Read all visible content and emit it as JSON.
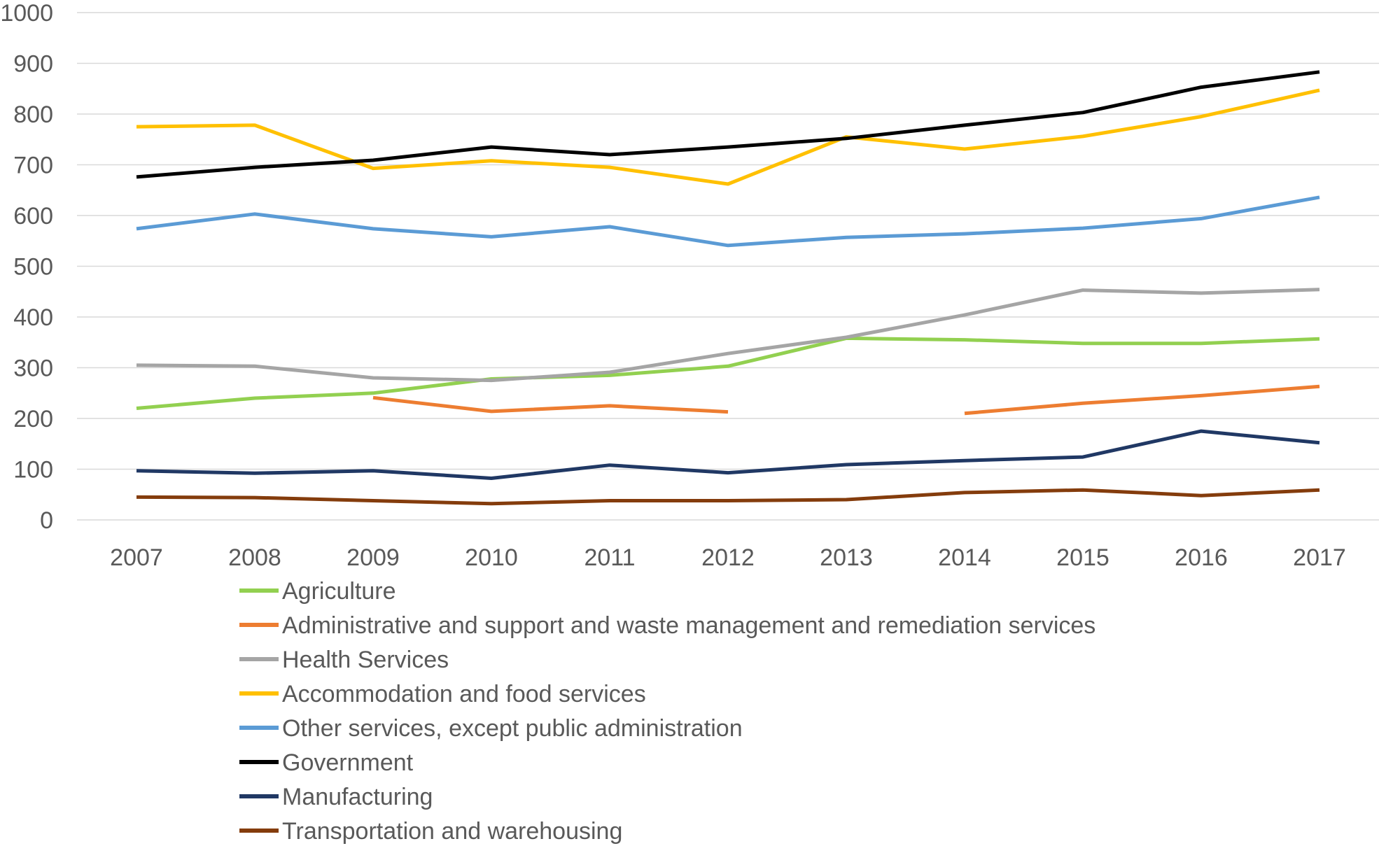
{
  "chart_data": {
    "type": "line",
    "title": "",
    "xlabel": "",
    "ylabel": "",
    "ylim": [
      0,
      1000
    ],
    "yticks": [
      0,
      100,
      200,
      300,
      400,
      500,
      600,
      700,
      800,
      900,
      1000
    ],
    "grid": true,
    "legend_position": "bottom",
    "categories": [
      "2007",
      "2008",
      "2009",
      "2010",
      "2011",
      "2012",
      "2013",
      "2014",
      "2015",
      "2016",
      "2017"
    ],
    "series": [
      {
        "name": "Agriculture",
        "color": "#92d050",
        "values": [
          220,
          240,
          250,
          278,
          285,
          303,
          358,
          355,
          348,
          348,
          357
        ]
      },
      {
        "name": "Administrative and support and waste management and remediation services",
        "color": "#ed7d31",
        "values": [
          null,
          null,
          241,
          214,
          225,
          213,
          null,
          210,
          230,
          245,
          263
        ]
      },
      {
        "name": "Health Services",
        "color": "#a5a5a5",
        "values": [
          305,
          303,
          280,
          275,
          291,
          328,
          360,
          404,
          453,
          447,
          454
        ]
      },
      {
        "name": "Accommodation and food services",
        "color": "#ffc000",
        "values": [
          775,
          778,
          693,
          708,
          695,
          662,
          755,
          731,
          756,
          795,
          847
        ]
      },
      {
        "name": "Other services, except public administration",
        "color": "#5b9bd5",
        "values": [
          574,
          603,
          574,
          558,
          578,
          541,
          557,
          564,
          575,
          594,
          636
        ]
      },
      {
        "name": "Government",
        "color": "#000000",
        "values": [
          676,
          695,
          709,
          735,
          720,
          735,
          752,
          778,
          803,
          853,
          883
        ]
      },
      {
        "name": "Manufacturing",
        "color": "#203864",
        "values": [
          97,
          92,
          97,
          82,
          108,
          93,
          109,
          117,
          124,
          175,
          152
        ]
      },
      {
        "name": "Transportation and warehousing",
        "color": "#843c0c",
        "values": [
          45,
          44,
          38,
          32,
          38,
          38,
          40,
          54,
          59,
          48,
          59
        ]
      }
    ]
  }
}
